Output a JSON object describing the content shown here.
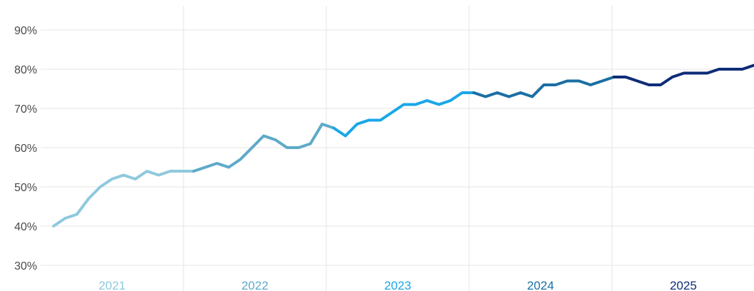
{
  "chart_data": {
    "type": "line",
    "title": "",
    "xlabel": "",
    "ylabel": "",
    "ylim": [
      30,
      90
    ],
    "y_ticks": [
      "30%",
      "40%",
      "50%",
      "60%",
      "70%",
      "80%",
      "90%"
    ],
    "y_tick_values": [
      30,
      40,
      50,
      60,
      70,
      80,
      90
    ],
    "grid": true,
    "legend": "none",
    "x_unit": "month index (year bands)",
    "year_labels": [
      "2021",
      "2022",
      "2023",
      "2024",
      "2025"
    ],
    "year_colors": [
      "#8fc9dd",
      "#5eaac8",
      "#1aa7e8",
      "#1a6fa3",
      "#0f2c78"
    ],
    "points_per_year": 12,
    "series": [
      {
        "values": [
          40,
          42,
          43,
          47,
          50,
          52,
          53,
          52,
          54,
          53,
          54,
          54,
          54,
          55,
          56,
          55,
          57,
          60,
          63,
          62,
          60,
          60,
          61,
          66,
          65,
          63,
          66,
          67,
          67,
          69,
          71,
          71,
          72,
          71,
          72,
          74,
          74,
          73,
          74,
          73,
          74,
          73,
          76,
          76,
          77,
          77,
          76,
          77,
          78,
          78,
          77,
          76,
          76,
          78,
          79,
          79,
          79,
          80,
          80,
          80,
          81
        ]
      }
    ]
  }
}
